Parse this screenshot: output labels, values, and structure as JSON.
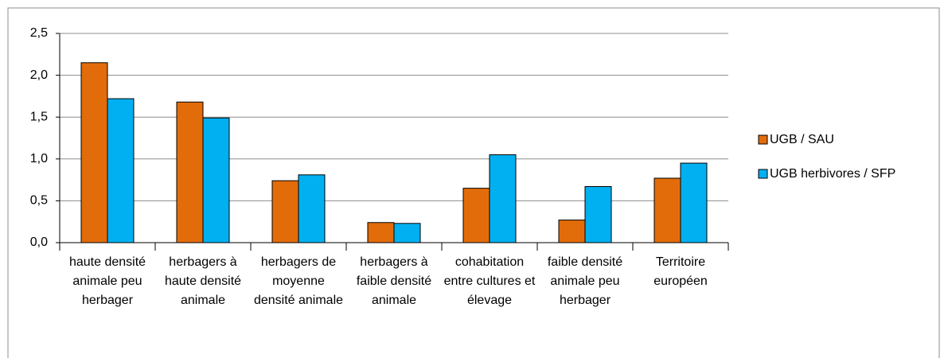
{
  "chart_data": {
    "type": "bar",
    "categories": [
      "haute densité animale peu herbager",
      "herbagers à haute densité animale",
      "herbagers de moyenne densité animale",
      "herbagers à faible densité animale",
      "cohabitation entre cultures et élevage",
      "faible densité animale peu herbager",
      "Territoire européen"
    ],
    "series": [
      {
        "name": "UGB / SAU",
        "color": "#e36c0a",
        "values": [
          2.15,
          1.68,
          0.74,
          0.24,
          0.65,
          0.27,
          0.77
        ]
      },
      {
        "name": "UGB herbivores / SFP",
        "color": "#00b0f0",
        "values": [
          1.72,
          1.49,
          0.81,
          0.23,
          1.05,
          0.67,
          0.95
        ]
      }
    ],
    "ylim": [
      0,
      2.5
    ],
    "yticks": [
      {
        "value": 0,
        "label": "0,0"
      },
      {
        "value": 0.5,
        "label": "0,5"
      },
      {
        "value": 1,
        "label": "1,0"
      },
      {
        "value": 1.5,
        "label": "1,5"
      },
      {
        "value": 2,
        "label": "2,0"
      },
      {
        "value": 2.5,
        "label": "2,5"
      }
    ],
    "grid": true,
    "legend": "right"
  }
}
